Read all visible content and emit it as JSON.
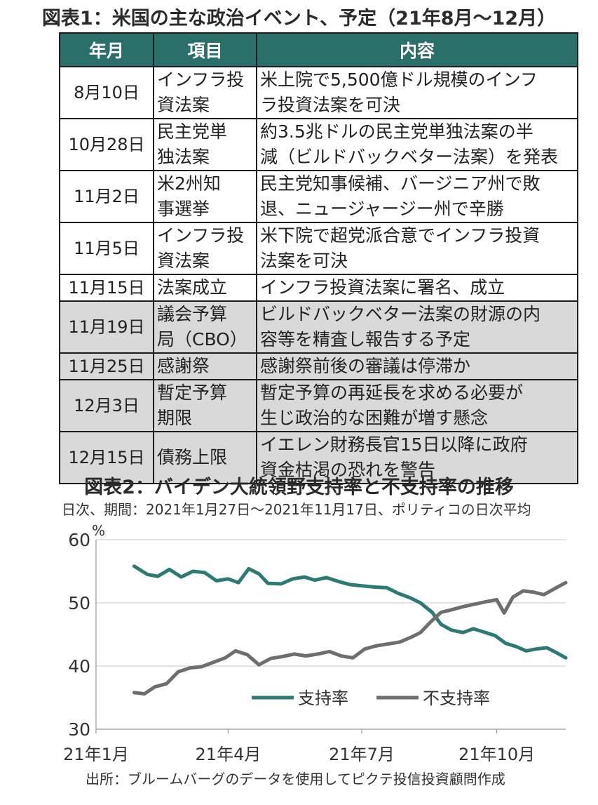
{
  "table": {
    "title": "図表1：米国の主な政治イベント、予定（21年8月～12月）",
    "headers": [
      "年月",
      "項目",
      "内容"
    ],
    "rows": [
      {
        "date": "8月10日",
        "item": [
          "インフラ投",
          "資法案"
        ],
        "content": [
          "米上院で5,500億ドル規模のインフ",
          "ラ投資法案を可決"
        ],
        "shaded": false
      },
      {
        "date": "10月28日",
        "item": [
          "民主党単",
          "独法案"
        ],
        "content": [
          "約3.5兆ドルの民主党単独法案の半",
          "減（ビルドバックベター法案）を発表"
        ],
        "shaded": false
      },
      {
        "date": "11月2日",
        "item": [
          "米2州知",
          "事選挙"
        ],
        "content": [
          "民主党知事候補、バージニア州で敗",
          "退、ニュージャージー州で辛勝"
        ],
        "shaded": false
      },
      {
        "date": "11月5日",
        "item": [
          "インフラ投",
          "資法案"
        ],
        "content": [
          "米下院で超党派合意でインフラ投資",
          "法案を可決"
        ],
        "shaded": false
      },
      {
        "date": "11月15日",
        "item": [
          "法案成立"
        ],
        "content": [
          "インフラ投資法案に署名、成立"
        ],
        "shaded": false
      },
      {
        "date": "11月19日",
        "item": [
          "議会予算",
          "局（CBO）"
        ],
        "content": [
          "ビルドバックベター法案の財源の内",
          "容等を精査し報告する予定"
        ],
        "shaded": true
      },
      {
        "date": "11月25日",
        "item": [
          "感謝祭"
        ],
        "content": [
          "感謝祭前後の審議は停滞か"
        ],
        "shaded": true
      },
      {
        "date": "12月3日",
        "item": [
          "暫定予算",
          "期限"
        ],
        "content": [
          "暫定予算の再延長を求める必要が",
          "生じ政治的な困難が増す懸念"
        ],
        "shaded": true
      },
      {
        "date": "12月15日",
        "item": [
          "債務上限"
        ],
        "content": [
          "イエレン財務長官15日以降に政府",
          "資金枯渇の恐れを警告"
        ],
        "shaded": true
      }
    ]
  },
  "chart_data": {
    "type": "line",
    "title": "図表2：バイデン大統領野支持率と不支持率の推移",
    "subtitle": "日次、期間：2021年1月27日～2021年11月17日、ポリティコの日次平均",
    "source": "出所：ブルームバーグのデータを使用してピクテ投信投資顧問作成",
    "ylabel": "%",
    "ylim": [
      30,
      60
    ],
    "yticks": [
      "60",
      "50",
      "40",
      "30"
    ],
    "xtick_labels": [
      "21年1月",
      "21年4月",
      "21年7月",
      "21年10月"
    ],
    "xtick_dates": [
      "2021-01-01",
      "2021-04-01",
      "2021-07-01",
      "2021-10-01"
    ],
    "xlim": [
      "2021-01-01",
      "2021-11-17"
    ],
    "legend_position": "bottom-right",
    "colors": {
      "approval": "#2b7a74",
      "disapproval": "#6e6e6e"
    },
    "series": [
      {
        "name": "支持率",
        "points": [
          [
            "2021-01-27",
            55.8
          ],
          [
            "2021-02-05",
            54.5
          ],
          [
            "2021-02-12",
            54.2
          ],
          [
            "2021-02-20",
            55.3
          ],
          [
            "2021-02-28",
            54.1
          ],
          [
            "2021-03-08",
            55.0
          ],
          [
            "2021-03-16",
            54.8
          ],
          [
            "2021-03-24",
            53.5
          ],
          [
            "2021-04-01",
            53.8
          ],
          [
            "2021-04-08",
            53.2
          ],
          [
            "2021-04-15",
            55.4
          ],
          [
            "2021-04-22",
            54.6
          ],
          [
            "2021-04-28",
            53.1
          ],
          [
            "2021-05-07",
            53.0
          ],
          [
            "2021-05-15",
            53.8
          ],
          [
            "2021-05-23",
            54.1
          ],
          [
            "2021-05-30",
            53.6
          ],
          [
            "2021-06-07",
            54.0
          ],
          [
            "2021-06-15",
            53.4
          ],
          [
            "2021-06-23",
            52.9
          ],
          [
            "2021-07-01",
            52.7
          ],
          [
            "2021-07-10",
            52.5
          ],
          [
            "2021-07-18",
            52.4
          ],
          [
            "2021-07-26",
            51.5
          ],
          [
            "2021-08-03",
            50.8
          ],
          [
            "2021-08-10",
            50.0
          ],
          [
            "2021-08-18",
            48.5
          ],
          [
            "2021-08-24",
            46.6
          ],
          [
            "2021-08-31",
            45.7
          ],
          [
            "2021-09-08",
            45.3
          ],
          [
            "2021-09-15",
            45.9
          ],
          [
            "2021-09-22",
            45.4
          ],
          [
            "2021-09-30",
            44.8
          ],
          [
            "2021-10-07",
            43.6
          ],
          [
            "2021-10-14",
            43.1
          ],
          [
            "2021-10-21",
            42.4
          ],
          [
            "2021-10-28",
            42.7
          ],
          [
            "2021-11-04",
            42.9
          ],
          [
            "2021-11-10",
            42.2
          ],
          [
            "2021-11-17",
            41.3
          ]
        ]
      },
      {
        "name": "不支持率",
        "points": [
          [
            "2021-01-27",
            35.8
          ],
          [
            "2021-02-03",
            35.6
          ],
          [
            "2021-02-10",
            36.7
          ],
          [
            "2021-02-18",
            37.2
          ],
          [
            "2021-02-26",
            39.1
          ],
          [
            "2021-03-06",
            39.7
          ],
          [
            "2021-03-14",
            39.9
          ],
          [
            "2021-03-22",
            40.6
          ],
          [
            "2021-03-30",
            41.3
          ],
          [
            "2021-04-06",
            42.4
          ],
          [
            "2021-04-14",
            41.8
          ],
          [
            "2021-04-22",
            40.2
          ],
          [
            "2021-04-30",
            41.2
          ],
          [
            "2021-05-08",
            41.5
          ],
          [
            "2021-05-16",
            41.9
          ],
          [
            "2021-05-24",
            41.6
          ],
          [
            "2021-06-01",
            41.9
          ],
          [
            "2021-06-09",
            42.3
          ],
          [
            "2021-06-17",
            41.6
          ],
          [
            "2021-06-25",
            41.3
          ],
          [
            "2021-07-03",
            42.7
          ],
          [
            "2021-07-11",
            43.2
          ],
          [
            "2021-07-19",
            43.5
          ],
          [
            "2021-07-27",
            43.8
          ],
          [
            "2021-08-04",
            44.6
          ],
          [
            "2021-08-10",
            45.3
          ],
          [
            "2021-08-17",
            47.0
          ],
          [
            "2021-08-24",
            48.5
          ],
          [
            "2021-08-31",
            48.9
          ],
          [
            "2021-09-08",
            49.4
          ],
          [
            "2021-09-16",
            49.8
          ],
          [
            "2021-09-24",
            50.2
          ],
          [
            "2021-10-01",
            50.5
          ],
          [
            "2021-10-06",
            48.4
          ],
          [
            "2021-10-12",
            50.9
          ],
          [
            "2021-10-19",
            51.9
          ],
          [
            "2021-10-26",
            51.7
          ],
          [
            "2021-11-02",
            51.3
          ],
          [
            "2021-11-09",
            52.2
          ],
          [
            "2021-11-17",
            53.2
          ]
        ]
      }
    ]
  }
}
